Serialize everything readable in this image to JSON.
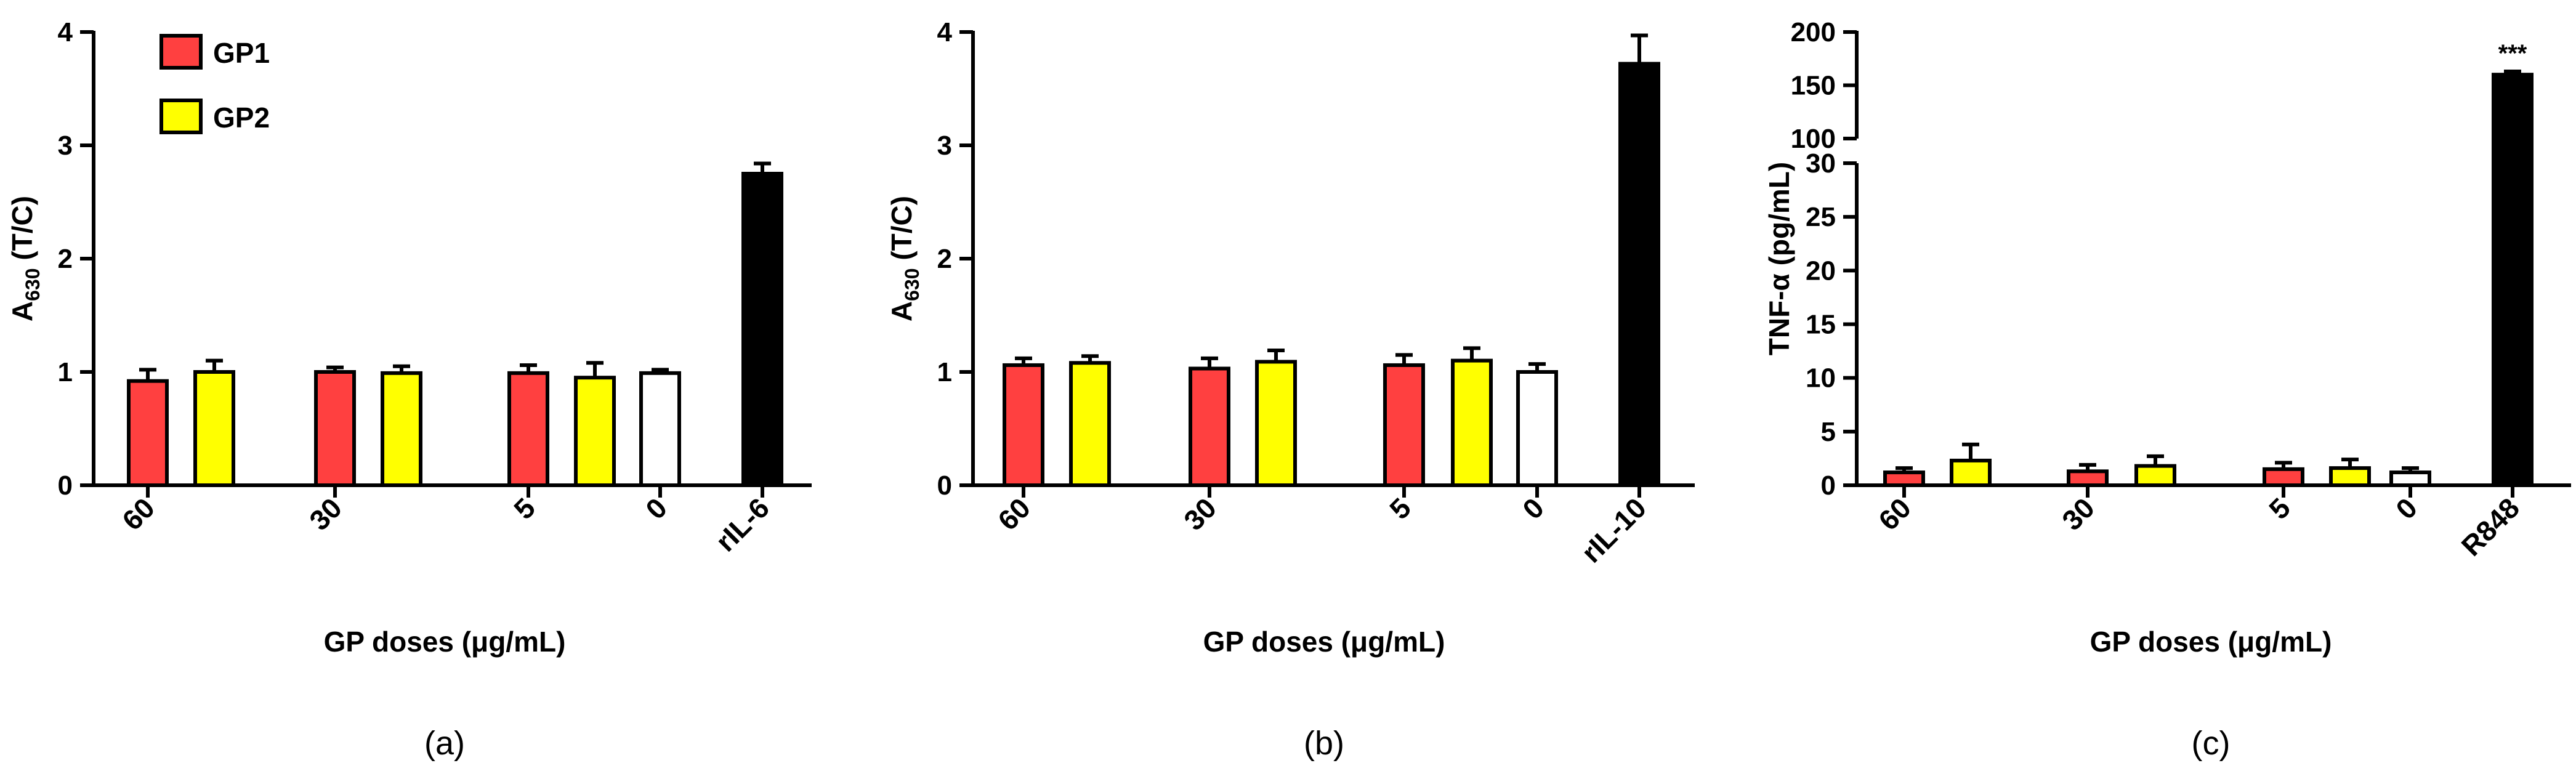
{
  "colors": {
    "gp1": "#ff4040",
    "gp2": "#ffff00",
    "control": "#ffffff",
    "positive": "#000000"
  },
  "legend": [
    {
      "label": "GP1",
      "color": "#ff4040"
    },
    {
      "label": "GP2",
      "color": "#ffff00"
    }
  ],
  "chart_data": [
    {
      "type": "bar",
      "panel": "(a)",
      "ylabel_main": "A",
      "ylabel_sub": "630",
      "ylabel_rest": " (T/C)",
      "xlabel": "GP doses (μg/mL)",
      "ylim": [
        0,
        4
      ],
      "yticks": [
        0,
        1,
        2,
        3,
        4
      ],
      "categories": [
        "60",
        "30",
        "5",
        "0",
        "rIL-6"
      ],
      "groups": [
        {
          "category": "60",
          "bars": [
            {
              "series": "GP1",
              "value": 0.92,
              "error": 0.1
            },
            {
              "series": "GP2",
              "value": 1.0,
              "error": 0.1
            }
          ]
        },
        {
          "category": "30",
          "bars": [
            {
              "series": "GP1",
              "value": 1.0,
              "error": 0.04
            },
            {
              "series": "GP2",
              "value": 0.99,
              "error": 0.06
            }
          ]
        },
        {
          "category": "5",
          "bars": [
            {
              "series": "GP1",
              "value": 0.99,
              "error": 0.07
            },
            {
              "series": "GP2",
              "value": 0.95,
              "error": 0.13
            }
          ]
        },
        {
          "category": "0",
          "bars": [
            {
              "series": "control",
              "value": 0.99,
              "error": 0.03
            }
          ]
        },
        {
          "category": "rIL-6",
          "bars": [
            {
              "series": "positive",
              "value": 2.75,
              "error": 0.09
            }
          ]
        }
      ]
    },
    {
      "type": "bar",
      "panel": "(b)",
      "ylabel_main": "A",
      "ylabel_sub": "630",
      "ylabel_rest": " (T/C)",
      "xlabel": "GP doses (μg/mL)",
      "ylim": [
        0,
        4
      ],
      "yticks": [
        0,
        1,
        2,
        3,
        4
      ],
      "categories": [
        "60",
        "30",
        "5",
        "0",
        "rIL-10"
      ],
      "groups": [
        {
          "category": "60",
          "bars": [
            {
              "series": "GP1",
              "value": 1.06,
              "error": 0.06
            },
            {
              "series": "GP2",
              "value": 1.08,
              "error": 0.06
            }
          ]
        },
        {
          "category": "30",
          "bars": [
            {
              "series": "GP1",
              "value": 1.03,
              "error": 0.09
            },
            {
              "series": "GP2",
              "value": 1.09,
              "error": 0.1
            }
          ]
        },
        {
          "category": "5",
          "bars": [
            {
              "series": "GP1",
              "value": 1.06,
              "error": 0.09
            },
            {
              "series": "GP2",
              "value": 1.1,
              "error": 0.11
            }
          ]
        },
        {
          "category": "0",
          "bars": [
            {
              "series": "control",
              "value": 1.0,
              "error": 0.07
            }
          ]
        },
        {
          "category": "rIL-10",
          "bars": [
            {
              "series": "positive",
              "value": 3.72,
              "error": 0.25
            }
          ]
        }
      ]
    },
    {
      "type": "bar",
      "panel": "(c)",
      "ylabel": "TNF-α (pg/mL)",
      "xlabel": "GP doses (μg/mL)",
      "broken_axis": true,
      "ylim_lower": [
        0,
        30
      ],
      "yticks_lower": [
        0,
        5,
        10,
        15,
        20,
        25,
        30
      ],
      "ylim_upper": [
        100,
        200
      ],
      "yticks_upper": [
        100,
        150,
        200
      ],
      "categories": [
        "60",
        "30",
        "5",
        "0",
        "R848"
      ],
      "significance": "***",
      "groups": [
        {
          "category": "60",
          "bars": [
            {
              "series": "GP1",
              "value": 1.2,
              "error": 0.4
            },
            {
              "series": "GP2",
              "value": 2.3,
              "error": 1.5
            }
          ]
        },
        {
          "category": "30",
          "bars": [
            {
              "series": "GP1",
              "value": 1.3,
              "error": 0.6
            },
            {
              "series": "GP2",
              "value": 1.8,
              "error": 0.9
            }
          ]
        },
        {
          "category": "5",
          "bars": [
            {
              "series": "GP1",
              "value": 1.5,
              "error": 0.6
            },
            {
              "series": "GP2",
              "value": 1.6,
              "error": 0.8
            }
          ]
        },
        {
          "category": "0",
          "bars": [
            {
              "series": "control",
              "value": 1.2,
              "error": 0.4
            }
          ]
        },
        {
          "category": "R848",
          "bars": [
            {
              "series": "positive",
              "value": 160,
              "error": 3
            }
          ]
        }
      ]
    }
  ]
}
